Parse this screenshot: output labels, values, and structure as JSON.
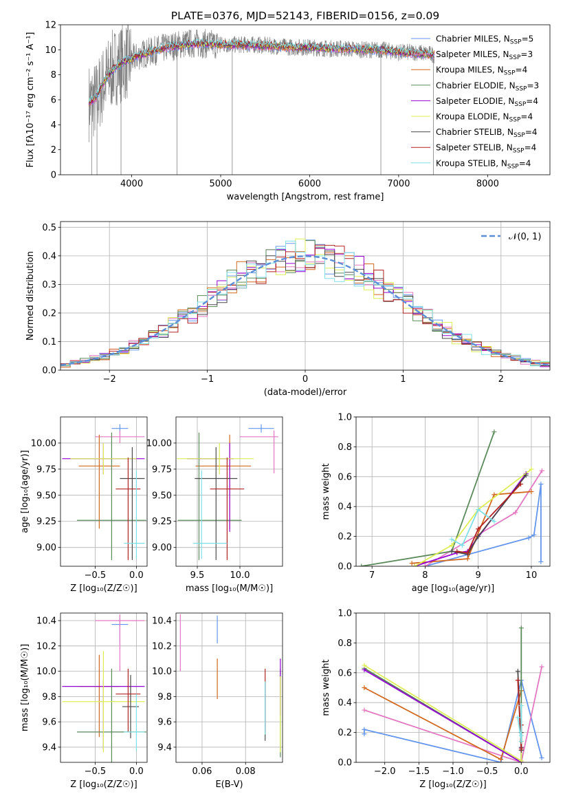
{
  "figure": {
    "title": "PLATE=0376, MJD=52143, FIBERID=0156, z=0.09"
  },
  "series_colors": {
    "Chabrier MILES": "#6495ED",
    "Salpeter MILES": "#E377C2",
    "Kroupa MILES": "#D2691E",
    "Chabrier ELODIE": "#5A8A5A",
    "Salpeter ELODIE": "#9400D3",
    "Kroupa ELODIE": "#DDEE55",
    "Chabrier STELIB": "#4A4A4A",
    "Salpeter STELIB": "#B22222",
    "Kroupa STELIB": "#7FDFE6"
  },
  "chart_data": [
    {
      "id": "spectrum",
      "type": "line",
      "title": "PLATE=0376, MJD=52143, FIBERID=0156, z=0.09",
      "xlabel": "wavelength [Angstrom, rest frame]",
      "ylabel": "Flux [fλ10⁻¹⁷ erg cm⁻² s⁻¹ A⁻¹]",
      "xlim": [
        3200,
        8700
      ],
      "ylim": [
        0,
        12
      ],
      "xticks": [
        4000,
        5000,
        6000,
        7000,
        8000
      ],
      "yticks": [
        0,
        2,
        4,
        6,
        8,
        10,
        12
      ],
      "legend_position": "right",
      "legend": [
        {
          "label": "Chabrier MILES, N",
          "sub": "SSP",
          "eq": "=5"
        },
        {
          "label": "Salpeter MILES, N",
          "sub": "SSP",
          "eq": "=3"
        },
        {
          "label": "Kroupa MILES, N",
          "sub": "SSP",
          "eq": "=4"
        },
        {
          "label": "Chabrier ELODIE, N",
          "sub": "SSP",
          "eq": "=3"
        },
        {
          "label": "Salpeter ELODIE, N",
          "sub": "SSP",
          "eq": "=4"
        },
        {
          "label": "Kroupa ELODIE, N",
          "sub": "SSP",
          "eq": "=4"
        },
        {
          "label": "Chabrier STELIB, N",
          "sub": "SSP",
          "eq": "=4"
        },
        {
          "label": "Salpeter STELIB, N",
          "sub": "SSP",
          "eq": "=4"
        },
        {
          "label": "Kroupa STELIB, N",
          "sub": "SSP",
          "eq": "=4"
        }
      ],
      "data_envelope": {
        "x": [
          3520,
          3600,
          3700,
          3800,
          3900,
          4000,
          4100,
          4200,
          4400,
          4600,
          4800,
          5000,
          5200,
          5400,
          5600,
          5800,
          6000,
          6200,
          6400,
          6600,
          6800,
          7000,
          7200,
          7400
        ],
        "y": [
          5.8,
          6.0,
          7.5,
          8.6,
          9.0,
          9.2,
          9.6,
          9.8,
          10.2,
          10.5,
          10.5,
          10.4,
          10.4,
          10.4,
          10.3,
          10.2,
          10.2,
          10.1,
          10.1,
          10.0,
          10.0,
          9.8,
          9.8,
          9.6
        ]
      },
      "model_envelope": {
        "x": [
          3520,
          3600,
          3700,
          3800,
          3900,
          4000,
          4200,
          4400,
          4600,
          4800,
          5000,
          5200,
          5400,
          5600,
          5800,
          6000,
          6200,
          6400,
          6600,
          6800,
          7000,
          7200,
          7400
        ],
        "y": [
          5.8,
          6.2,
          7.6,
          8.5,
          9.0,
          9.3,
          9.8,
          10.2,
          10.4,
          10.5,
          10.4,
          10.4,
          10.3,
          10.3,
          10.2,
          10.2,
          10.1,
          10.1,
          10.0,
          10.0,
          9.8,
          9.7,
          9.6
        ]
      }
    },
    {
      "id": "residuals",
      "type": "line",
      "xlabel": "(data-model)/error",
      "ylabel": "Normed distribution",
      "xlim": [
        -2.5,
        2.5
      ],
      "ylim": [
        0,
        0.52
      ],
      "xticks": [
        -2,
        -1,
        0,
        1,
        2
      ],
      "yticks": [
        0.0,
        0.1,
        0.2,
        0.3,
        0.4,
        0.5
      ],
      "grid": true,
      "legend_position": "top-right",
      "legend_label": "𝒩(0, 1)",
      "gaussian": {
        "mean": 0,
        "sigma": 1
      },
      "hist_bin_width": 0.1
    },
    {
      "id": "age_vs_Z",
      "type": "scatter",
      "xlabel": "Z [log₁₀(Z/Z☉)]",
      "ylabel": "age  [log₁₀(age/yr)]",
      "xlim": [
        -0.92,
        0.13
      ],
      "ylim": [
        8.82,
        10.25
      ],
      "xticks": [
        -0.5,
        0.0
      ],
      "yticks": [
        9.0,
        9.25,
        9.5,
        9.75,
        10.0
      ],
      "grid": true,
      "points": [
        {
          "series": "Chabrier MILES",
          "x": -0.2,
          "y": 10.14,
          "xerr": [
            0.1,
            0.1
          ],
          "yerr": [
            0.04,
            0.04
          ]
        },
        {
          "series": "Salpeter MILES",
          "x": -0.2,
          "y": 10.06,
          "xerr": [
            0.3,
            0.3
          ],
          "yerr": [
            0.06,
            0.06
          ]
        },
        {
          "series": "Kroupa MILES",
          "x": -0.45,
          "y": 9.78,
          "xerr": [
            0.25,
            0.25
          ],
          "yerr": [
            0.6,
            0.3
          ]
        },
        {
          "series": "Chabrier ELODIE",
          "x": -0.3,
          "y": 9.26,
          "xerr": [
            0.42,
            0.42
          ],
          "yerr": [
            0.38,
            0.84
          ]
        },
        {
          "series": "Salpeter ELODIE",
          "x": -0.4,
          "y": 9.85,
          "xerr": [
            0.5,
            0.5
          ],
          "yerr": [
            0.15,
            0.15
          ]
        },
        {
          "series": "Kroupa ELODIE",
          "x": -0.4,
          "y": 9.85,
          "xerr": [
            0.4,
            0.4
          ],
          "yerr": [
            0.15,
            0.15
          ]
        },
        {
          "series": "Chabrier STELIB",
          "x": -0.05,
          "y": 9.66,
          "xerr": [
            0.15,
            0.15
          ],
          "yerr": [
            0.78,
            0.3
          ]
        },
        {
          "series": "Salpeter STELIB",
          "x": -0.1,
          "y": 9.56,
          "xerr": [
            0.15,
            0.15
          ],
          "yerr": [
            0.68,
            0.3
          ]
        },
        {
          "series": "Kroupa STELIB",
          "x": 0.0,
          "y": 9.04,
          "xerr": [
            0.15,
            0.1
          ],
          "yerr": [
            0.15,
            0.7
          ]
        }
      ]
    },
    {
      "id": "age_vs_mass",
      "type": "scatter",
      "xlabel": "mass [log₁₀(M/M☉)]",
      "xlim": [
        9.25,
        10.5
      ],
      "ylim": [
        8.82,
        10.25
      ],
      "xticks": [
        9.5,
        10.0
      ],
      "yticks": [
        9.0,
        9.25,
        9.5,
        9.75,
        10.0
      ],
      "grid": true,
      "points": [
        {
          "series": "Chabrier MILES",
          "x": 10.25,
          "y": 10.14,
          "xerr": [
            0.15,
            0.15
          ],
          "yerr": [
            0.04,
            0.04
          ]
        },
        {
          "series": "Salpeter MILES",
          "x": 10.4,
          "y": 10.06,
          "xerr": [
            0.4,
            0.05
          ],
          "yerr": [
            0.35,
            0.06
          ]
        },
        {
          "series": "Kroupa MILES",
          "x": 9.88,
          "y": 9.78,
          "xerr": [
            0.4,
            0.25
          ],
          "yerr": [
            0.6,
            0.3
          ]
        },
        {
          "series": "Chabrier ELODIE",
          "x": 9.52,
          "y": 9.26,
          "xerr": [
            0.25,
            0.5
          ],
          "yerr": [
            0.38,
            0.84
          ]
        },
        {
          "series": "Salpeter ELODIE",
          "x": 9.88,
          "y": 9.85,
          "xerr": [
            0.5,
            0.05
          ],
          "yerr": [
            0.7,
            0.15
          ]
        },
        {
          "series": "Kroupa ELODIE",
          "x": 9.76,
          "y": 9.85,
          "xerr": [
            0.5,
            0.4
          ],
          "yerr": [
            0.15,
            0.15
          ]
        },
        {
          "series": "Chabrier STELIB",
          "x": 9.72,
          "y": 9.66,
          "xerr": [
            0.25,
            0.25
          ],
          "yerr": [
            0.78,
            0.3
          ]
        },
        {
          "series": "Salpeter STELIB",
          "x": 9.85,
          "y": 9.56,
          "xerr": [
            0.2,
            0.2
          ],
          "yerr": [
            0.68,
            0.3
          ]
        },
        {
          "series": "Kroupa STELIB",
          "x": 9.55,
          "y": 9.04,
          "xerr": [
            0.1,
            0.3
          ],
          "yerr": [
            0.15,
            0.7
          ]
        }
      ]
    },
    {
      "id": "massweight_vs_age",
      "type": "line",
      "xlabel": "age  [log₁₀(age/yr)]",
      "ylabel": "mass weight",
      "xlim": [
        6.7,
        10.35
      ],
      "ylim": [
        0.0,
        1.0
      ],
      "xticks": [
        7,
        8,
        9,
        10
      ],
      "yticks": [
        0.0,
        0.2,
        0.4,
        0.6,
        0.8,
        1.0
      ],
      "grid": true,
      "series": [
        {
          "name": "Chabrier MILES",
          "x": [
            8.0,
            9.95,
            10.05,
            10.18,
            10.18
          ],
          "y": [
            0.0,
            0.19,
            0.21,
            0.55,
            0.03
          ]
        },
        {
          "name": "Salpeter MILES",
          "x": [
            8.0,
            9.7,
            10.2
          ],
          "y": [
            0.0,
            0.36,
            0.64
          ]
        },
        {
          "name": "Kroupa MILES",
          "x": [
            7.75,
            8.8,
            9.3,
            10.0
          ],
          "y": [
            0.02,
            0.05,
            0.48,
            0.5
          ]
        },
        {
          "name": "Chabrier ELODIE",
          "x": [
            6.8,
            8.5,
            9.3
          ],
          "y": [
            0.0,
            0.1,
            0.9
          ]
        },
        {
          "name": "Salpeter ELODIE",
          "x": [
            7.8,
            8.6,
            8.8,
            9.9
          ],
          "y": [
            0.0,
            0.09,
            0.1,
            0.62
          ]
        },
        {
          "name": "Kroupa ELODIE",
          "x": [
            7.8,
            8.5,
            9.0,
            10.0
          ],
          "y": [
            0.0,
            0.14,
            0.38,
            0.65
          ]
        },
        {
          "name": "Chabrier STELIB",
          "x": [
            8.5,
            8.8,
            9.0,
            9.9
          ],
          "y": [
            0.1,
            0.08,
            0.2,
            0.61
          ]
        },
        {
          "name": "Salpeter STELIB",
          "x": [
            8.6,
            8.8,
            9.0,
            9.8
          ],
          "y": [
            0.1,
            0.09,
            0.25,
            0.55
          ]
        },
        {
          "name": "Kroupa STELIB",
          "x": [
            8.5,
            8.7,
            9.0,
            9.3
          ],
          "y": [
            0.18,
            0.14,
            0.38,
            0.3
          ]
        }
      ]
    },
    {
      "id": "mass_vs_Z",
      "type": "scatter",
      "xlabel": "Z [log₁₀(Z/Z☉)]",
      "ylabel": "mass [log₁₀(M/M☉)]",
      "xlim": [
        -0.92,
        0.13
      ],
      "ylim": [
        9.28,
        10.46
      ],
      "xticks": [
        -0.5,
        0.0
      ],
      "yticks": [
        9.4,
        9.6,
        9.8,
        10.0,
        10.2,
        10.4
      ],
      "grid": true,
      "points": [
        {
          "series": "Chabrier MILES",
          "x": -0.2,
          "y": 10.37,
          "xerr": [
            0.1,
            0.1
          ],
          "yerr": [
            0.15,
            0.07
          ]
        },
        {
          "series": "Salpeter MILES",
          "x": -0.2,
          "y": 10.4,
          "xerr": [
            0.3,
            0.3
          ],
          "yerr": [
            0.4,
            0.05
          ]
        },
        {
          "series": "Kroupa MILES",
          "x": -0.45,
          "y": 9.88,
          "xerr": [
            0.25,
            0.25
          ],
          "yerr": [
            0.4,
            0.25
          ]
        },
        {
          "series": "Chabrier ELODIE",
          "x": -0.3,
          "y": 9.52,
          "xerr": [
            0.42,
            0.42
          ],
          "yerr": [
            0.25,
            0.5
          ]
        },
        {
          "series": "Salpeter ELODIE",
          "x": -0.4,
          "y": 9.88,
          "xerr": [
            0.5,
            0.5
          ],
          "yerr": [
            0.5,
            0.05
          ]
        },
        {
          "series": "Kroupa ELODIE",
          "x": -0.4,
          "y": 9.76,
          "xerr": [
            0.5,
            0.5
          ],
          "yerr": [
            0.4,
            0.4
          ]
        },
        {
          "series": "Chabrier STELIB",
          "x": -0.07,
          "y": 9.72,
          "xerr": [
            0.1,
            0.1
          ],
          "yerr": [
            0.25,
            0.25
          ]
        },
        {
          "series": "Salpeter STELIB",
          "x": -0.1,
          "y": 9.82,
          "xerr": [
            0.15,
            0.15
          ],
          "yerr": [
            0.3,
            0.2
          ]
        },
        {
          "series": "Kroupa STELIB",
          "x": 0.0,
          "y": 9.52,
          "xerr": [
            0.15,
            0.1
          ],
          "yerr": [
            0.15,
            0.3
          ]
        }
      ]
    },
    {
      "id": "mass_vs_EBV",
      "type": "scatter",
      "xlabel": "E(B-V)",
      "xlim": [
        0.048,
        0.097
      ],
      "ylim": [
        9.28,
        10.46
      ],
      "xticks": [
        0.06,
        0.08
      ],
      "yticks": [
        9.4,
        9.6,
        9.8,
        10.0,
        10.2,
        10.4
      ],
      "grid": true,
      "points": [
        {
          "series": "Chabrier MILES",
          "x": 0.067,
          "y": 10.37,
          "xerr": [
            0,
            0
          ],
          "yerr": [
            0.15,
            0.07
          ]
        },
        {
          "series": "Salpeter MILES",
          "x": 0.05,
          "y": 10.4,
          "xerr": [
            0,
            0
          ],
          "yerr": [
            0.4,
            0.05
          ]
        },
        {
          "series": "Kroupa MILES",
          "x": 0.067,
          "y": 9.88,
          "xerr": [
            0,
            0
          ],
          "yerr": [
            0.1,
            0.22
          ]
        },
        {
          "series": "Chabrier ELODIE",
          "x": 0.096,
          "y": 9.52,
          "xerr": [
            0,
            0
          ],
          "yerr": [
            0.2,
            0.5
          ]
        },
        {
          "series": "Salpeter ELODIE",
          "x": 0.096,
          "y": 9.95,
          "xerr": [
            0,
            0
          ],
          "yerr": [
            0.3,
            0.15
          ]
        },
        {
          "series": "Kroupa ELODIE",
          "x": 0.096,
          "y": 9.76,
          "xerr": [
            0,
            0
          ],
          "yerr": [
            0.4,
            0.2
          ]
        },
        {
          "series": "Chabrier STELIB",
          "x": 0.089,
          "y": 9.72,
          "xerr": [
            0,
            0
          ],
          "yerr": [
            0.27,
            0.2
          ]
        },
        {
          "series": "Salpeter STELIB",
          "x": 0.089,
          "y": 9.82,
          "xerr": [
            0,
            0
          ],
          "yerr": [
            0.3,
            0.2
          ]
        },
        {
          "series": "Kroupa STELIB",
          "x": 0.089,
          "y": 9.7,
          "xerr": [
            0,
            0
          ],
          "yerr": [
            0.2,
            0.22
          ]
        }
      ]
    },
    {
      "id": "massweight_vs_Z",
      "type": "line",
      "xlabel": "Z [log₁₀(Z/Z☉)]",
      "ylabel": "mass weight",
      "xlim": [
        -2.42,
        0.42
      ],
      "ylim": [
        0.0,
        1.0
      ],
      "xticks": [
        -2.0,
        -1.5,
        -1.0,
        -0.5,
        0.0
      ],
      "yticks": [
        0.0,
        0.2,
        0.4,
        0.6,
        0.8,
        1.0
      ],
      "grid": true,
      "series": [
        {
          "name": "Chabrier MILES",
          "x": [
            -2.3,
            -2.3,
            -0.3,
            0.0,
            0.3
          ],
          "y": [
            0.19,
            0.22,
            0.0,
            0.55,
            0.03
          ]
        },
        {
          "name": "Salpeter MILES",
          "x": [
            -2.3,
            0.0,
            0.3
          ],
          "y": [
            0.35,
            0.0,
            0.64
          ]
        },
        {
          "name": "Kroupa MILES",
          "x": [
            -2.3,
            -0.3,
            0.0
          ],
          "y": [
            0.5,
            0.02,
            0.48
          ]
        },
        {
          "name": "Chabrier ELODIE",
          "x": [
            -2.3,
            0.0,
            0.0
          ],
          "y": [
            0.63,
            0.0,
            0.9
          ]
        },
        {
          "name": "Salpeter ELODIE",
          "x": [
            -2.3,
            0.0,
            0.0
          ],
          "y": [
            0.62,
            0.0,
            0.1
          ]
        },
        {
          "name": "Kroupa ELODIE",
          "x": [
            -2.3,
            0.0,
            0.0
          ],
          "y": [
            0.65,
            0.01,
            0.14
          ]
        },
        {
          "name": "Chabrier STELIB",
          "x": [
            -0.05,
            0.0,
            0.0,
            0.0
          ],
          "y": [
            0.61,
            0.08,
            0.2,
            0.1
          ]
        },
        {
          "name": "Salpeter STELIB",
          "x": [
            -0.05,
            0.0,
            0.0
          ],
          "y": [
            0.55,
            0.09,
            0.25
          ]
        },
        {
          "name": "Kroupa STELIB",
          "x": [
            -0.05,
            0.0,
            0.0,
            0.0
          ],
          "y": [
            0.3,
            0.14,
            0.38,
            0.18
          ]
        }
      ]
    }
  ]
}
